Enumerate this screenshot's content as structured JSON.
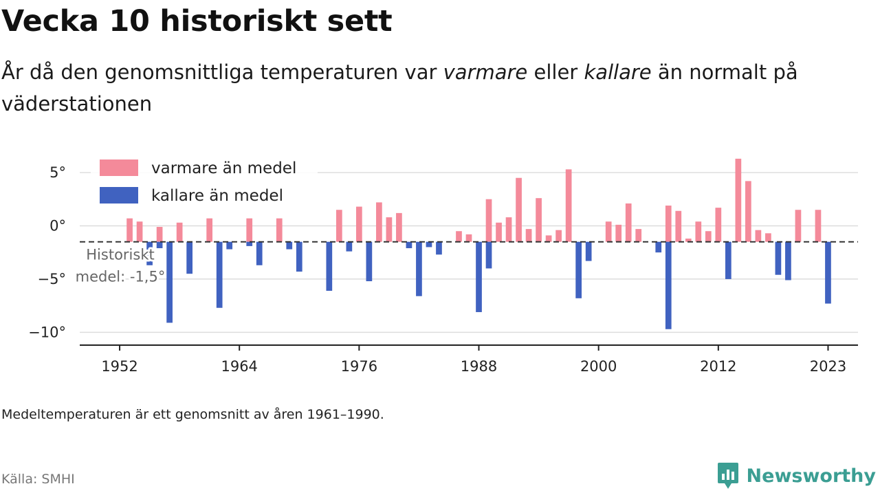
{
  "title": "Vecka 10 historiskt sett",
  "subtitle": {
    "part1": "År då den genomsnittliga temperaturen var ",
    "warm_word": "varmare",
    "part2": " eller ",
    "cold_word": "kallare",
    "part3": " än normalt på väderstationen"
  },
  "note": "Medeltemperaturen är ett genomsnitt av åren 1961–1990.",
  "source": "Källa: SMHI",
  "logo": {
    "name": "Newsworthy",
    "icon": "newsworthy-logo-icon"
  },
  "colors": {
    "warm": "#f48a9a",
    "cold": "#4062c0",
    "grid": "#dddddd",
    "axis": "#222222",
    "mean_line": "#333333"
  },
  "chart_data": {
    "type": "bar",
    "xlim": [
      1948,
      2026
    ],
    "ylim": [
      -11.2,
      7
    ],
    "y_ticks": [
      5,
      0,
      -5,
      -10
    ],
    "y_tick_labels": [
      "5°",
      "0°",
      "−5°",
      "−10°"
    ],
    "x_ticks": [
      1952,
      1964,
      1976,
      1988,
      2000,
      2012,
      2023
    ],
    "x_tick_labels": [
      "1952",
      "1964",
      "1976",
      "1988",
      "2000",
      "2012",
      "2023"
    ],
    "baseline": -1.5,
    "legend": {
      "position": "top-left",
      "warm_label": "varmare än medel",
      "cold_label": "kallare än medel"
    },
    "annotation": {
      "line1": "Historiskt",
      "line2": "medel: -1,5°"
    },
    "grid": true,
    "series": [
      {
        "name": "varmare än medel",
        "points": [
          {
            "x": 1953,
            "y": 0.7
          },
          {
            "x": 1954,
            "y": 0.4
          },
          {
            "x": 1956,
            "y": -0.1
          },
          {
            "x": 1958,
            "y": 0.3
          },
          {
            "x": 1961,
            "y": 0.7
          },
          {
            "x": 1965,
            "y": 0.7
          },
          {
            "x": 1968,
            "y": 0.7
          },
          {
            "x": 1974,
            "y": 1.5
          },
          {
            "x": 1976,
            "y": 1.8
          },
          {
            "x": 1978,
            "y": 2.2
          },
          {
            "x": 1979,
            "y": 0.8
          },
          {
            "x": 1980,
            "y": 1.2
          },
          {
            "x": 1986,
            "y": -0.5
          },
          {
            "x": 1987,
            "y": -0.8
          },
          {
            "x": 1989,
            "y": 2.5
          },
          {
            "x": 1990,
            "y": 0.3
          },
          {
            "x": 1991,
            "y": 0.8
          },
          {
            "x": 1992,
            "y": 4.5
          },
          {
            "x": 1993,
            "y": -0.3
          },
          {
            "x": 1994,
            "y": 2.6
          },
          {
            "x": 1995,
            "y": -0.9
          },
          {
            "x": 1996,
            "y": -0.4
          },
          {
            "x": 1997,
            "y": 5.3
          },
          {
            "x": 2001,
            "y": 0.4
          },
          {
            "x": 2002,
            "y": 0.1
          },
          {
            "x": 2003,
            "y": 2.1
          },
          {
            "x": 2004,
            "y": -0.3
          },
          {
            "x": 2007,
            "y": 1.9
          },
          {
            "x": 2008,
            "y": 1.4
          },
          {
            "x": 2009,
            "y": -1.2
          },
          {
            "x": 2010,
            "y": 0.4
          },
          {
            "x": 2011,
            "y": -0.5
          },
          {
            "x": 2012,
            "y": 1.7
          },
          {
            "x": 2014,
            "y": 6.3
          },
          {
            "x": 2015,
            "y": 4.2
          },
          {
            "x": 2016,
            "y": -0.4
          },
          {
            "x": 2017,
            "y": -0.7
          },
          {
            "x": 2020,
            "y": 1.5
          },
          {
            "x": 2022,
            "y": 1.5
          }
        ]
      },
      {
        "name": "kallare än medel",
        "points": [
          {
            "x": 1955,
            "y": -3.7
          },
          {
            "x": 1956,
            "y": -2.1
          },
          {
            "x": 1957,
            "y": -9.1
          },
          {
            "x": 1959,
            "y": -4.5
          },
          {
            "x": 1962,
            "y": -7.7
          },
          {
            "x": 1963,
            "y": -2.2
          },
          {
            "x": 1965,
            "y": -1.9
          },
          {
            "x": 1966,
            "y": -3.7
          },
          {
            "x": 1969,
            "y": -2.2
          },
          {
            "x": 1970,
            "y": -4.3
          },
          {
            "x": 1973,
            "y": -6.1
          },
          {
            "x": 1975,
            "y": -2.4
          },
          {
            "x": 1977,
            "y": -5.2
          },
          {
            "x": 1981,
            "y": -2.1
          },
          {
            "x": 1982,
            "y": -6.6
          },
          {
            "x": 1983,
            "y": -2.0
          },
          {
            "x": 1984,
            "y": -2.7
          },
          {
            "x": 1988,
            "y": -8.1
          },
          {
            "x": 1989,
            "y": -4.0
          },
          {
            "x": 1998,
            "y": -6.8
          },
          {
            "x": 1999,
            "y": -3.3
          },
          {
            "x": 2006,
            "y": -2.5
          },
          {
            "x": 2007,
            "y": -9.7
          },
          {
            "x": 2013,
            "y": -5.0
          },
          {
            "x": 2018,
            "y": -4.6
          },
          {
            "x": 2019,
            "y": -5.1
          },
          {
            "x": 2023,
            "y": -7.3
          }
        ]
      }
    ]
  }
}
